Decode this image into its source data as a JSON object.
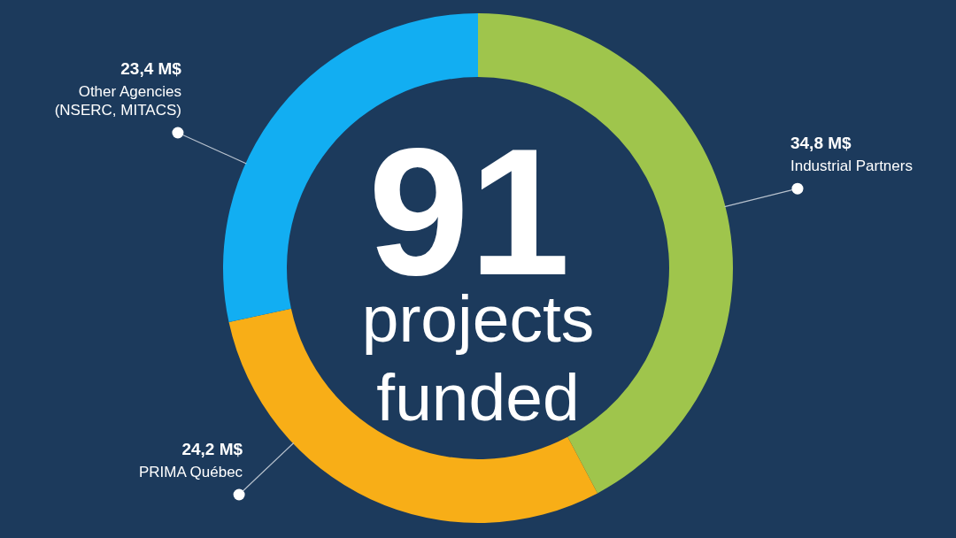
{
  "chart_data": {
    "type": "donut",
    "categories": [
      "Industrial Partners",
      "PRIMA Québec",
      "Other Agencies (NSERC, MITACS)"
    ],
    "values": [
      34.8,
      24.2,
      23.4
    ],
    "colors": [
      "#9fc54c",
      "#f8ae17",
      "#12aef2"
    ],
    "value_labels": [
      "34,8 M$",
      "24,2 M$",
      "23,4 M$"
    ],
    "annotations": [
      "91",
      "projects funded"
    ]
  }
}
